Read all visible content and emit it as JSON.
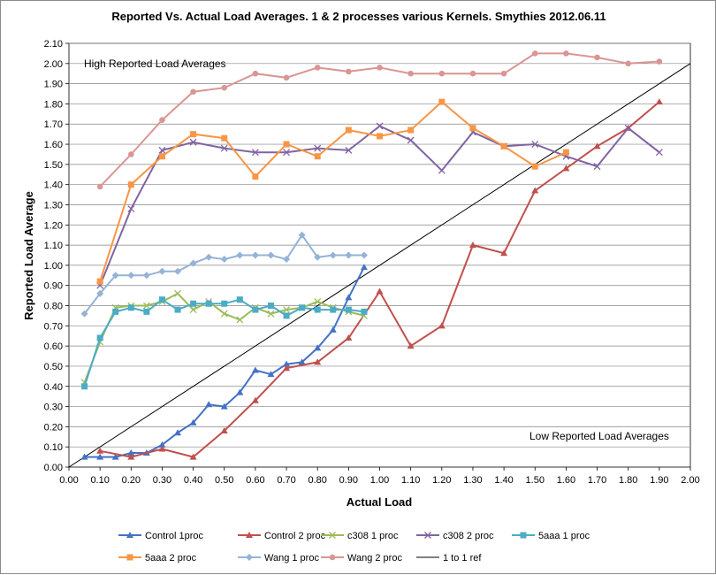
{
  "chart_data": {
    "type": "line",
    "title": "Reported Vs. Actual Load Averages. 1 & 2 processes various Kernels. Smythies 2012.06.11",
    "xlabel": "Actual Load",
    "ylabel": "Reported Load Average",
    "xlim": [
      0,
      2.0
    ],
    "ylim": [
      0,
      2.1
    ],
    "x_ticks": [
      "0.00",
      "0.10",
      "0.20",
      "0.30",
      "0.40",
      "0.50",
      "0.60",
      "0.70",
      "0.80",
      "0.90",
      "1.00",
      "1.10",
      "1.20",
      "1.30",
      "1.40",
      "1.50",
      "1.60",
      "1.70",
      "1.80",
      "1.90",
      "2.00"
    ],
    "y_ticks": [
      "0.00",
      "0.10",
      "0.20",
      "0.30",
      "0.40",
      "0.50",
      "0.60",
      "0.70",
      "0.80",
      "0.90",
      "1.00",
      "1.10",
      "1.20",
      "1.30",
      "1.40",
      "1.50",
      "1.60",
      "1.70",
      "1.80",
      "1.90",
      "2.00",
      "2.10"
    ],
    "grid": "horizontal",
    "legend_position": "bottom",
    "annotations": [
      {
        "text": "High Reported Load Averages",
        "x": 0.05,
        "y": 2.0
      },
      {
        "text": "Low Reported Load Averages",
        "x": 1.49,
        "y": 0.13
      }
    ],
    "series": [
      {
        "name": "Control 1proc",
        "color": "#4472c4",
        "marker": "triangle",
        "points": [
          [
            0.05,
            0.05
          ],
          [
            0.1,
            0.05
          ],
          [
            0.15,
            0.05
          ],
          [
            0.2,
            0.07
          ],
          [
            0.25,
            0.07
          ],
          [
            0.3,
            0.11
          ],
          [
            0.35,
            0.17
          ],
          [
            0.4,
            0.22
          ],
          [
            0.45,
            0.31
          ],
          [
            0.5,
            0.3
          ],
          [
            0.55,
            0.37
          ],
          [
            0.6,
            0.48
          ],
          [
            0.65,
            0.46
          ],
          [
            0.7,
            0.51
          ],
          [
            0.75,
            0.52
          ],
          [
            0.8,
            0.59
          ],
          [
            0.85,
            0.68
          ],
          [
            0.9,
            0.84
          ],
          [
            0.95,
            0.99
          ]
        ]
      },
      {
        "name": "Control 2 proc",
        "color": "#c0504d",
        "marker": "triangle",
        "points": [
          [
            0.1,
            0.08
          ],
          [
            0.2,
            0.05
          ],
          [
            0.3,
            0.09
          ],
          [
            0.4,
            0.05
          ],
          [
            0.5,
            0.18
          ],
          [
            0.6,
            0.33
          ],
          [
            0.7,
            0.49
          ],
          [
            0.8,
            0.52
          ],
          [
            0.9,
            0.64
          ],
          [
            1.0,
            0.87
          ],
          [
            1.1,
            0.6
          ],
          [
            1.2,
            0.7
          ],
          [
            1.3,
            1.1
          ],
          [
            1.4,
            1.06
          ],
          [
            1.5,
            1.37
          ],
          [
            1.6,
            1.48
          ],
          [
            1.7,
            1.59
          ],
          [
            1.8,
            1.68
          ],
          [
            1.9,
            1.81
          ]
        ]
      },
      {
        "name": "c308 1 proc",
        "color": "#9bbb59",
        "marker": "x",
        "points": [
          [
            0.05,
            0.42
          ],
          [
            0.1,
            0.62
          ],
          [
            0.15,
            0.79
          ],
          [
            0.2,
            0.8
          ],
          [
            0.25,
            0.8
          ],
          [
            0.3,
            0.82
          ],
          [
            0.35,
            0.86
          ],
          [
            0.4,
            0.78
          ],
          [
            0.45,
            0.82
          ],
          [
            0.5,
            0.76
          ],
          [
            0.55,
            0.73
          ],
          [
            0.6,
            0.79
          ],
          [
            0.65,
            0.76
          ],
          [
            0.7,
            0.78
          ],
          [
            0.75,
            0.79
          ],
          [
            0.8,
            0.82
          ],
          [
            0.85,
            0.79
          ],
          [
            0.9,
            0.77
          ],
          [
            0.95,
            0.75
          ]
        ]
      },
      {
        "name": "c308 2 proc",
        "color": "#8064a2",
        "marker": "x",
        "points": [
          [
            0.1,
            0.9
          ],
          [
            0.2,
            1.28
          ],
          [
            0.3,
            1.57
          ],
          [
            0.4,
            1.61
          ],
          [
            0.5,
            1.58
          ],
          [
            0.6,
            1.56
          ],
          [
            0.7,
            1.56
          ],
          [
            0.8,
            1.58
          ],
          [
            0.9,
            1.57
          ],
          [
            1.0,
            1.69
          ],
          [
            1.1,
            1.62
          ],
          [
            1.2,
            1.47
          ],
          [
            1.3,
            1.66
          ],
          [
            1.4,
            1.59
          ],
          [
            1.5,
            1.6
          ],
          [
            1.6,
            1.54
          ],
          [
            1.7,
            1.49
          ],
          [
            1.8,
            1.68
          ],
          [
            1.9,
            1.56
          ]
        ]
      },
      {
        "name": "5aaa 1 proc",
        "color": "#4bacc6",
        "marker": "square",
        "points": [
          [
            0.05,
            0.4
          ],
          [
            0.1,
            0.64
          ],
          [
            0.15,
            0.77
          ],
          [
            0.2,
            0.79
          ],
          [
            0.25,
            0.77
          ],
          [
            0.3,
            0.83
          ],
          [
            0.35,
            0.78
          ],
          [
            0.4,
            0.81
          ],
          [
            0.45,
            0.81
          ],
          [
            0.5,
            0.81
          ],
          [
            0.55,
            0.83
          ],
          [
            0.6,
            0.78
          ],
          [
            0.65,
            0.8
          ],
          [
            0.7,
            0.75
          ],
          [
            0.75,
            0.79
          ],
          [
            0.8,
            0.78
          ],
          [
            0.85,
            0.78
          ],
          [
            0.9,
            0.78
          ],
          [
            0.95,
            0.77
          ]
        ]
      },
      {
        "name": "5aaa 2 proc",
        "color": "#f79646",
        "marker": "square",
        "points": [
          [
            0.1,
            0.92
          ],
          [
            0.2,
            1.4
          ],
          [
            0.3,
            1.54
          ],
          [
            0.4,
            1.65
          ],
          [
            0.5,
            1.63
          ],
          [
            0.6,
            1.44
          ],
          [
            0.7,
            1.6
          ],
          [
            0.8,
            1.54
          ],
          [
            0.9,
            1.67
          ],
          [
            1.0,
            1.64
          ],
          [
            1.1,
            1.67
          ],
          [
            1.2,
            1.81
          ],
          [
            1.3,
            1.68
          ],
          [
            1.4,
            1.59
          ],
          [
            1.5,
            1.49
          ],
          [
            1.6,
            1.56
          ]
        ]
      },
      {
        "name": "Wang 1 proc",
        "color": "#95b3d7",
        "marker": "diamond",
        "points": [
          [
            0.05,
            0.76
          ],
          [
            0.1,
            0.86
          ],
          [
            0.15,
            0.95
          ],
          [
            0.2,
            0.95
          ],
          [
            0.25,
            0.95
          ],
          [
            0.3,
            0.97
          ],
          [
            0.35,
            0.97
          ],
          [
            0.4,
            1.01
          ],
          [
            0.45,
            1.04
          ],
          [
            0.5,
            1.03
          ],
          [
            0.55,
            1.05
          ],
          [
            0.6,
            1.05
          ],
          [
            0.65,
            1.05
          ],
          [
            0.7,
            1.03
          ],
          [
            0.75,
            1.15
          ],
          [
            0.8,
            1.04
          ],
          [
            0.85,
            1.05
          ],
          [
            0.9,
            1.05
          ],
          [
            0.95,
            1.05
          ]
        ]
      },
      {
        "name": "Wang 2 proc",
        "color": "#d99694",
        "marker": "circle",
        "points": [
          [
            0.1,
            1.39
          ],
          [
            0.2,
            1.55
          ],
          [
            0.3,
            1.72
          ],
          [
            0.4,
            1.86
          ],
          [
            0.5,
            1.88
          ],
          [
            0.6,
            1.95
          ],
          [
            0.7,
            1.93
          ],
          [
            0.8,
            1.98
          ],
          [
            0.9,
            1.96
          ],
          [
            1.0,
            1.98
          ],
          [
            1.1,
            1.95
          ],
          [
            1.2,
            1.95
          ],
          [
            1.3,
            1.95
          ],
          [
            1.4,
            1.95
          ],
          [
            1.5,
            2.05
          ],
          [
            1.6,
            2.05
          ],
          [
            1.7,
            2.03
          ],
          [
            1.8,
            2.0
          ],
          [
            1.9,
            2.01
          ]
        ]
      },
      {
        "name": "1 to 1 ref",
        "color": "#000000",
        "marker": "none",
        "points": [
          [
            0.0,
            0.0
          ],
          [
            2.0,
            2.0
          ]
        ]
      }
    ]
  }
}
